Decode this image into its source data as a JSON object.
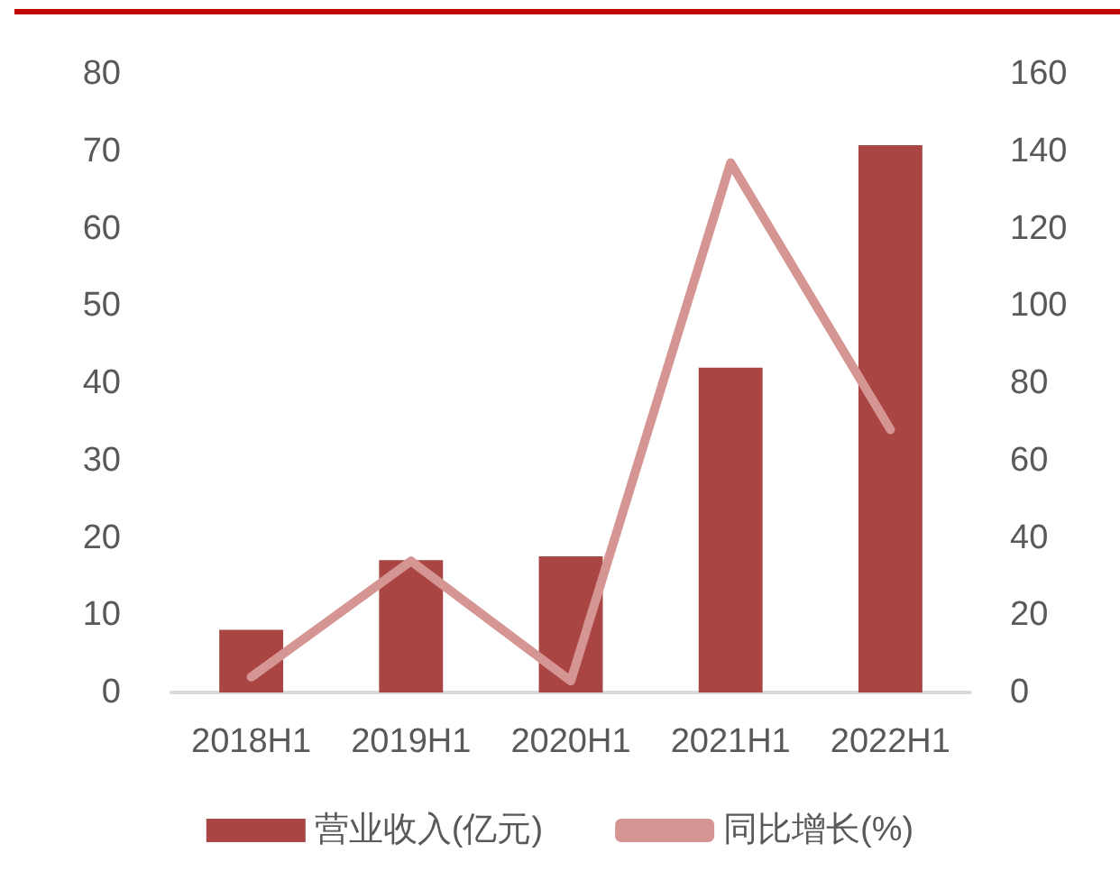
{
  "chart_data": {
    "type": "bar",
    "categories": [
      "2018H1",
      "2019H1",
      "2020H1",
      "2021H1",
      "2022H1"
    ],
    "series": [
      {
        "name": "营业收入(亿元)",
        "color": "#a94543",
        "values": [
          8.1,
          17.1,
          17.6,
          42.0,
          70.8
        ]
      },
      {
        "name": "同比增长(%)",
        "type": "line",
        "axis": "y2",
        "color": "#d49593",
        "values": [
          4,
          34,
          3,
          137,
          68
        ]
      }
    ],
    "ylim": [
      0,
      80
    ],
    "yticks": [
      0,
      10,
      20,
      30,
      40,
      50,
      60,
      70,
      80
    ],
    "y2lim": [
      0,
      160
    ],
    "y2ticks": [
      0,
      20,
      40,
      60,
      80,
      100,
      120,
      140,
      160
    ],
    "grid": false,
    "legend": "bottom",
    "marker": "none",
    "line_style": "solid"
  }
}
